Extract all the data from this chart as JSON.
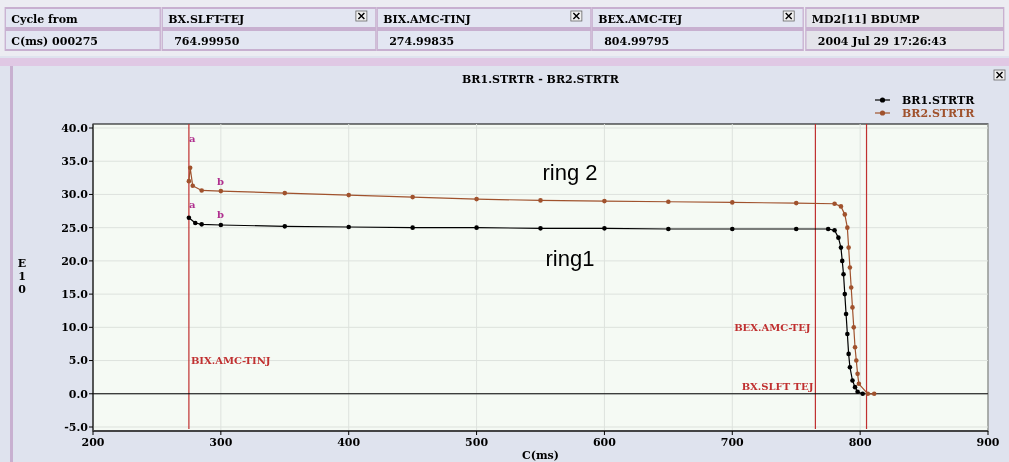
{
  "chart_data": {
    "type": "line",
    "title": "BR1.STRTR  -  BR2.STRTR",
    "xlabel": "C(ms)",
    "ylabel": "E10",
    "xlim": [
      200,
      900
    ],
    "xticks": [
      200,
      300,
      400,
      500,
      600,
      700,
      800,
      900
    ],
    "ylim": [
      -5,
      40
    ],
    "yticks": [
      {
        "value": -5,
        "label": "-5.0"
      },
      {
        "value": 0,
        "label": "0.0"
      },
      {
        "value": 5,
        "label": "5.0"
      },
      {
        "value": 10,
        "label": "10.0"
      },
      {
        "value": 15,
        "label": "15.0"
      },
      {
        "value": 20,
        "label": "20.0"
      },
      {
        "value": 25,
        "label": "25.0"
      },
      {
        "value": 30,
        "label": "30.0"
      },
      {
        "value": 35,
        "label": "35.0"
      },
      {
        "value": 40,
        "label": "40.0"
      }
    ],
    "grid": true,
    "legend": "top right",
    "line_style": "solid",
    "series": [
      {
        "name": "BR1.STRTR",
        "color": "#000000",
        "x": [
          275,
          280,
          285,
          300,
          350,
          400,
          450,
          500,
          550,
          600,
          650,
          700,
          750,
          775,
          780,
          783,
          785,
          786,
          787,
          788,
          789,
          790,
          791,
          792,
          794,
          796,
          798,
          802
        ],
        "values": [
          26.5,
          25.7,
          25.5,
          25.4,
          25.2,
          25.1,
          25.0,
          25.0,
          24.9,
          24.9,
          24.8,
          24.8,
          24.8,
          24.8,
          24.6,
          23.5,
          22,
          20,
          18,
          15,
          12,
          9,
          6,
          4,
          2,
          1,
          0.3,
          0
        ]
      },
      {
        "name": "BR2.STRTR",
        "color": "#a0522d",
        "x": [
          275,
          276,
          278,
          285,
          300,
          350,
          400,
          450,
          500,
          550,
          600,
          650,
          700,
          750,
          780,
          785,
          788,
          790,
          791,
          792,
          793,
          794,
          795,
          796,
          797,
          798,
          799,
          806,
          811
        ],
        "values": [
          32,
          34,
          31.3,
          30.6,
          30.5,
          30.2,
          29.9,
          29.6,
          29.3,
          29.1,
          29.0,
          28.9,
          28.8,
          28.7,
          28.6,
          28.2,
          27,
          25,
          22,
          19,
          16,
          13,
          10,
          7,
          5,
          3,
          1.5,
          0,
          0
        ]
      }
    ],
    "ref_lines": [
      {
        "axis": "x",
        "value": 274.99835,
        "label": "BIX.AMC-TINJ",
        "color": "#c03030"
      },
      {
        "axis": "x",
        "value": 764.9995,
        "label": "BX.SLFT TEJ",
        "color": "#c03030"
      },
      {
        "axis": "x",
        "value": 804.99795,
        "label": "BEX.AMC-TEJ",
        "color": "#c03030"
      },
      {
        "axis": "y",
        "value": 0,
        "color": "#000000"
      }
    ],
    "annotations": [
      "Cycle from",
      "C(ms)  000275",
      "BX.SLFT-TEJ",
      "764.99950",
      "BIX.AMC-TINJ",
      "274.99835",
      "BEX.AMC-TEJ",
      "804.99795",
      "MD2[11] BDUMP",
      "2004 Jul 29 17:26:43",
      "a",
      "a",
      "b",
      "b",
      "ring 2",
      "ring1"
    ]
  }
}
